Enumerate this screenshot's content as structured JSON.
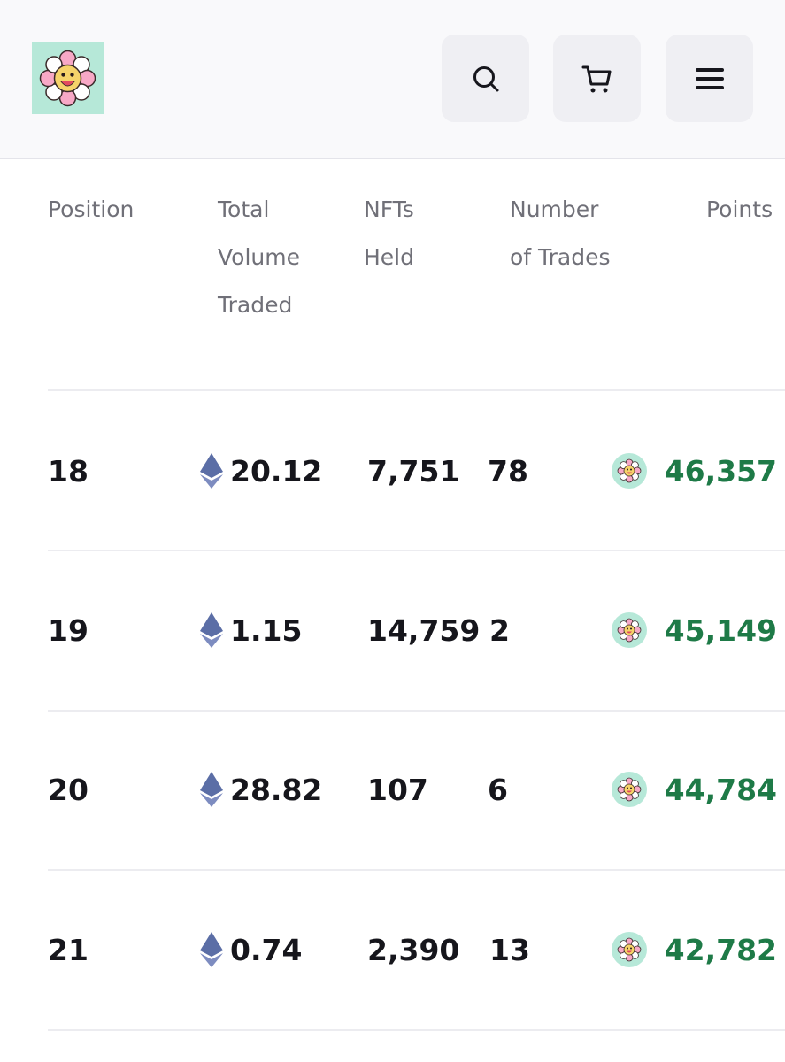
{
  "header": {
    "logo": "murakami-flower-logo",
    "buttons": [
      {
        "name": "search-icon"
      },
      {
        "name": "cart-icon"
      },
      {
        "name": "menu-icon"
      }
    ]
  },
  "table": {
    "columns": {
      "position": "Position",
      "volume": "Total Volume Traded",
      "nfts": "NFTs Held",
      "trades": "Number of Trades",
      "points": "Points"
    },
    "rows": [
      {
        "position": "18",
        "volume": "20.12",
        "nfts": "7,751",
        "trades": "78",
        "points": "46,357"
      },
      {
        "position": "19",
        "volume": "1.15",
        "nfts": "14,759",
        "trades": "2",
        "points": "45,149"
      },
      {
        "position": "20",
        "volume": "28.82",
        "nfts": "107",
        "trades": "6",
        "points": "44,784"
      },
      {
        "position": "21",
        "volume": "0.74",
        "nfts": "2,390",
        "trades": "13",
        "points": "42,782"
      }
    ]
  },
  "colors": {
    "points_green": "#1e7a47",
    "logo_bg": "#b6e8d8",
    "button_bg": "#efeff3",
    "eth_icon": "#5b6ea6"
  }
}
